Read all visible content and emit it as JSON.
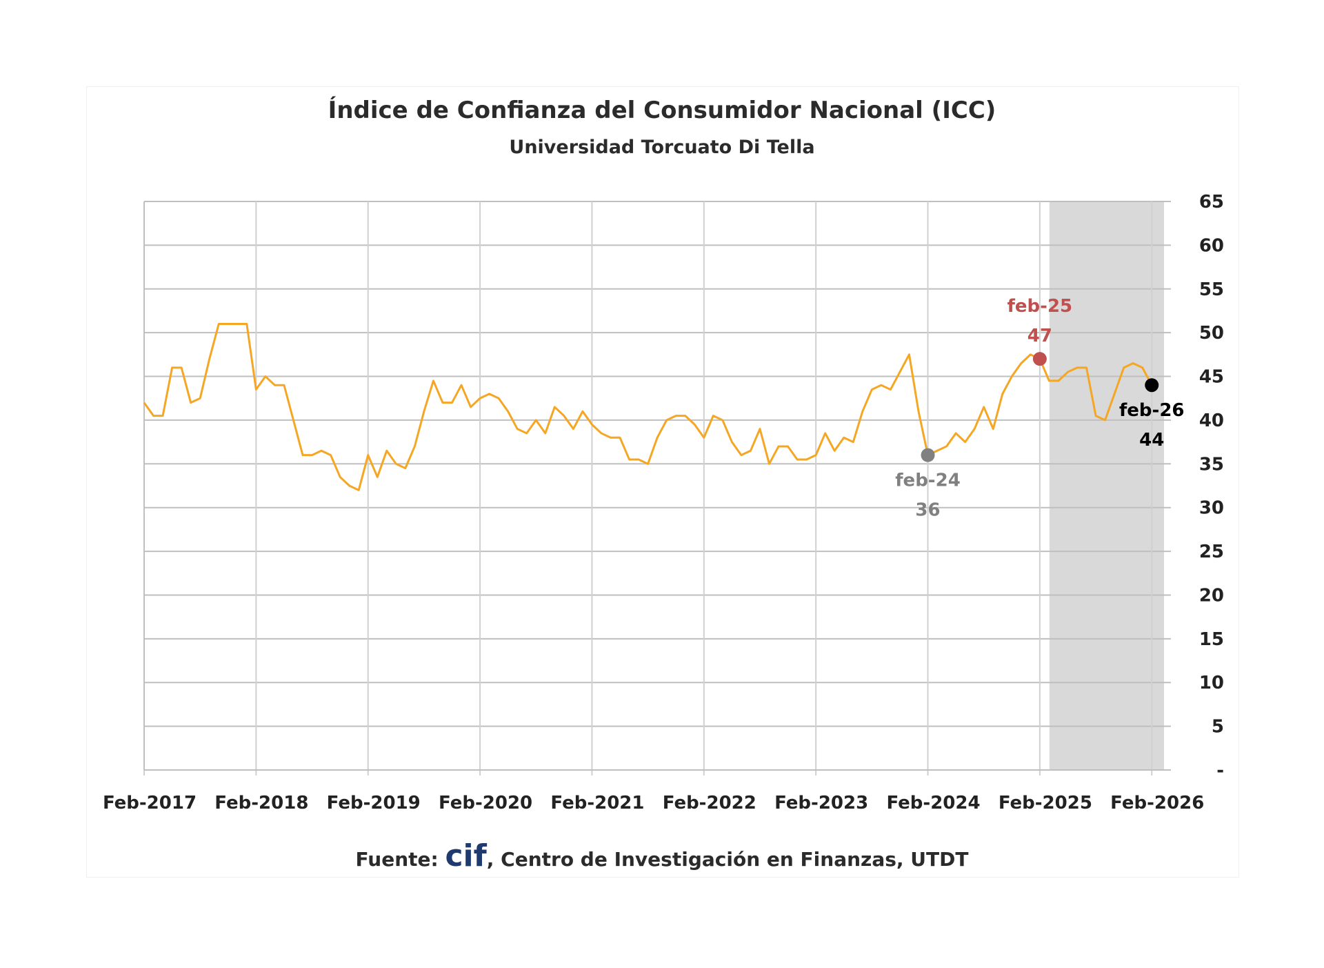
{
  "chart_data": {
    "type": "line",
    "title": "Índice de Confianza del Consumidor Nacional (ICC)",
    "subtitle": "Universidad Torcuato Di Tella",
    "source_prefix": "Fuente: ",
    "source_logo": "cif",
    "source_rest": ", Centro de Investigación en Finanzas, UTDT",
    "xlabel": "",
    "ylabel": "",
    "ylim": [
      0,
      65
    ],
    "y_ticks": [
      "-",
      "5",
      "10",
      "15",
      "20",
      "25",
      "30",
      "35",
      "40",
      "45",
      "50",
      "55",
      "60",
      "65"
    ],
    "x_tick_labels": [
      "Feb-2017",
      "Feb-2018",
      "Feb-2019",
      "Feb-2020",
      "Feb-2021",
      "Feb-2022",
      "Feb-2023",
      "Feb-2024",
      "Feb-2025",
      "Feb-2026"
    ],
    "grid": true,
    "y_axis_side": "right",
    "line_color": "#f5a623",
    "shaded_period": {
      "from": "2025-02",
      "to": "2026-02",
      "color": "#d9d9d9"
    },
    "x": [
      "2017-02",
      "2017-03",
      "2017-04",
      "2017-05",
      "2017-06",
      "2017-07",
      "2017-08",
      "2017-09",
      "2017-10",
      "2017-11",
      "2017-12",
      "2018-01",
      "2018-02",
      "2018-03",
      "2018-04",
      "2018-05",
      "2018-06",
      "2018-07",
      "2018-08",
      "2018-09",
      "2018-10",
      "2018-11",
      "2018-12",
      "2019-01",
      "2019-02",
      "2019-03",
      "2019-04",
      "2019-05",
      "2019-06",
      "2019-07",
      "2019-08",
      "2019-09",
      "2019-10",
      "2019-11",
      "2019-12",
      "2020-01",
      "2020-02",
      "2020-03",
      "2020-04",
      "2020-05",
      "2020-06",
      "2020-07",
      "2020-08",
      "2020-09",
      "2020-10",
      "2020-11",
      "2020-12",
      "2021-01",
      "2021-02",
      "2021-03",
      "2021-04",
      "2021-05",
      "2021-06",
      "2021-07",
      "2021-08",
      "2021-09",
      "2021-10",
      "2021-11",
      "2021-12",
      "2022-01",
      "2022-02",
      "2022-03",
      "2022-04",
      "2022-05",
      "2022-06",
      "2022-07",
      "2022-08",
      "2022-09",
      "2022-10",
      "2022-11",
      "2022-12",
      "2023-01",
      "2023-02",
      "2023-03",
      "2023-04",
      "2023-05",
      "2023-06",
      "2023-07",
      "2023-08",
      "2023-09",
      "2023-10",
      "2023-11",
      "2023-12",
      "2024-01",
      "2024-02",
      "2024-03",
      "2024-04",
      "2024-05",
      "2024-06",
      "2024-07",
      "2024-08",
      "2024-09",
      "2024-10",
      "2024-11",
      "2024-12",
      "2025-01",
      "2025-02",
      "2025-03",
      "2025-04",
      "2025-05",
      "2025-06",
      "2025-07",
      "2025-08",
      "2025-09",
      "2025-10",
      "2025-11",
      "2025-12",
      "2026-01",
      "2026-02"
    ],
    "values": [
      42,
      40.5,
      40.5,
      46,
      46,
      42,
      42.5,
      47,
      51,
      51,
      51,
      51,
      43.5,
      45,
      44,
      44,
      40,
      36,
      36,
      36.5,
      36,
      33.5,
      32.5,
      32,
      36,
      33.5,
      36.5,
      35,
      34.5,
      37,
      41,
      44.5,
      42,
      42,
      44,
      41.5,
      42.5,
      43,
      42.5,
      41,
      39,
      38.5,
      40,
      38.5,
      41.5,
      40.5,
      39,
      41,
      39.5,
      38.5,
      38,
      38,
      35.5,
      35.5,
      35,
      38,
      40,
      40.5,
      40.5,
      39.5,
      38,
      40.5,
      40,
      37.5,
      36,
      36.5,
      39,
      35,
      37,
      37,
      35.5,
      35.5,
      36,
      38.5,
      36.5,
      38,
      37.5,
      41,
      43.5,
      44,
      43.5,
      45.5,
      47.5,
      41,
      36,
      36.5,
      37,
      38.5,
      37.5,
      39,
      41.5,
      39,
      43,
      45,
      46.5,
      47.5,
      47,
      44.5,
      44.5,
      45.5,
      46,
      46,
      40.5,
      40,
      43,
      46,
      46.5,
      46,
      44
    ],
    "annotations": [
      {
        "x": "2024-02",
        "label": "feb-24",
        "value": "36",
        "y": 36,
        "color": "#808080"
      },
      {
        "x": "2025-02",
        "label": "feb-25",
        "value": "47",
        "y": 47,
        "color": "#c0504d"
      },
      {
        "x": "2026-02",
        "label": "feb-26",
        "value": "44",
        "y": 44,
        "color": "#000000"
      }
    ]
  }
}
